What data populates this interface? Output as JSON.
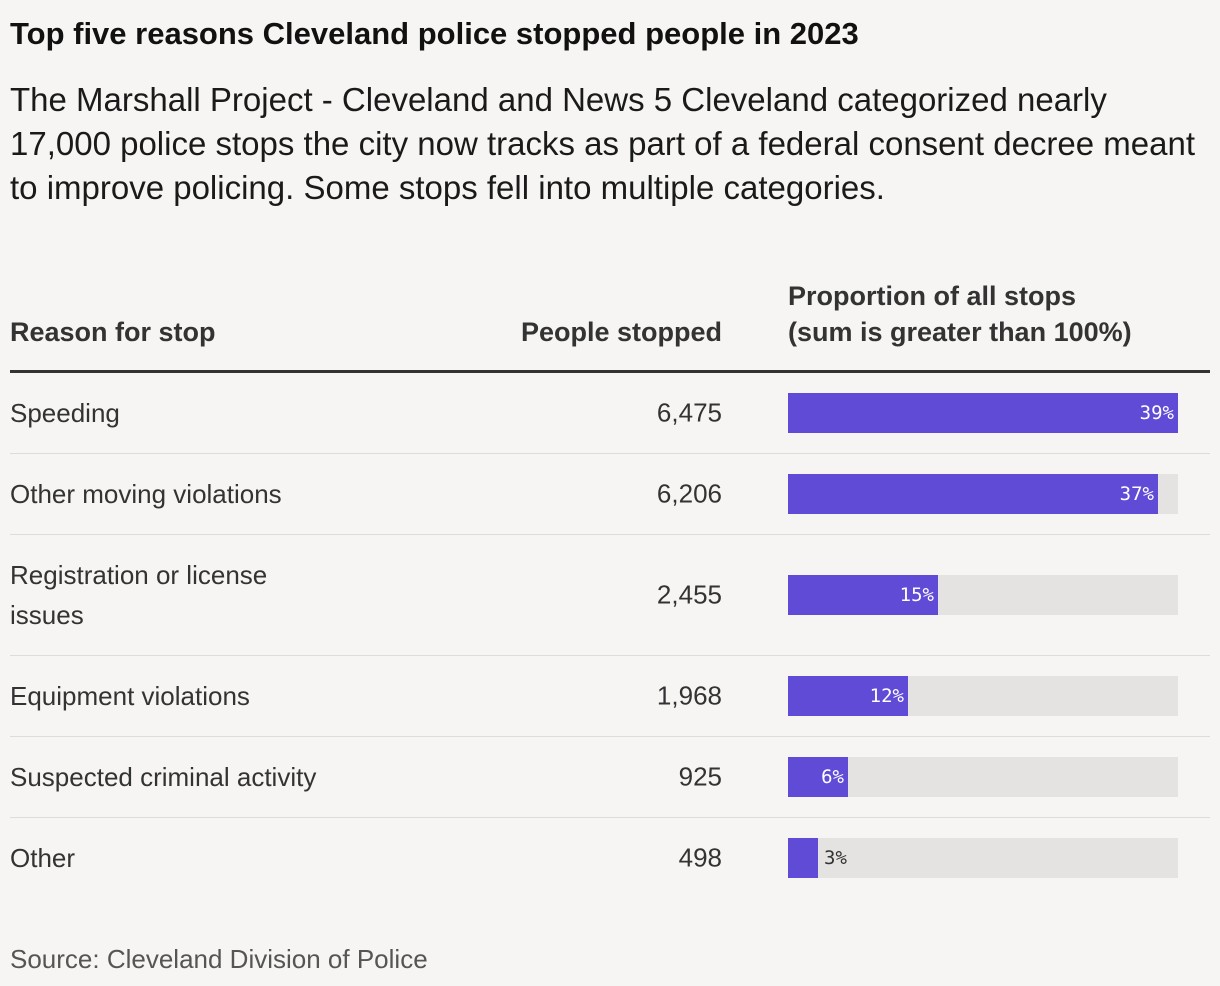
{
  "title": "Top five reasons Cleveland police stopped people in 2023",
  "subtitle": "The Marshall Project - Cleveland and News 5 Cleveland categorized nearly 17,000 police stops the city now tracks as part of a federal consent decree meant to improve policing. Some stops fell into multiple categories.",
  "headers": {
    "reason": "Reason for stop",
    "count": "People stopped",
    "proportion_line1": "Proportion of all stops",
    "proportion_line2": "(sum is greater than 100%)"
  },
  "source": "Source: Cleveland Division of Police",
  "colors": {
    "bar": "#5f4bd6",
    "track": "#e4e3e1",
    "background": "#f6f5f3"
  },
  "chart_data": {
    "type": "table",
    "columns": [
      "Reason for stop",
      "People stopped",
      "Proportion of all stops (sum is greater than 100%)"
    ],
    "scale_max_percent": 39,
    "rows": [
      {
        "reason": "Speeding",
        "count": "6,475",
        "percent": 39,
        "percent_label": "39%"
      },
      {
        "reason": "Other moving violations",
        "count": "6,206",
        "percent": 37,
        "percent_label": "37%"
      },
      {
        "reason": "Registration or license issues",
        "count": "2,455",
        "percent": 15,
        "percent_label": "15%"
      },
      {
        "reason": "Equipment violations",
        "count": "1,968",
        "percent": 12,
        "percent_label": "12%"
      },
      {
        "reason": "Suspected criminal activity",
        "count": "925",
        "percent": 6,
        "percent_label": "6%"
      },
      {
        "reason": "Other",
        "count": "498",
        "percent": 3,
        "percent_label": "3%"
      }
    ]
  }
}
